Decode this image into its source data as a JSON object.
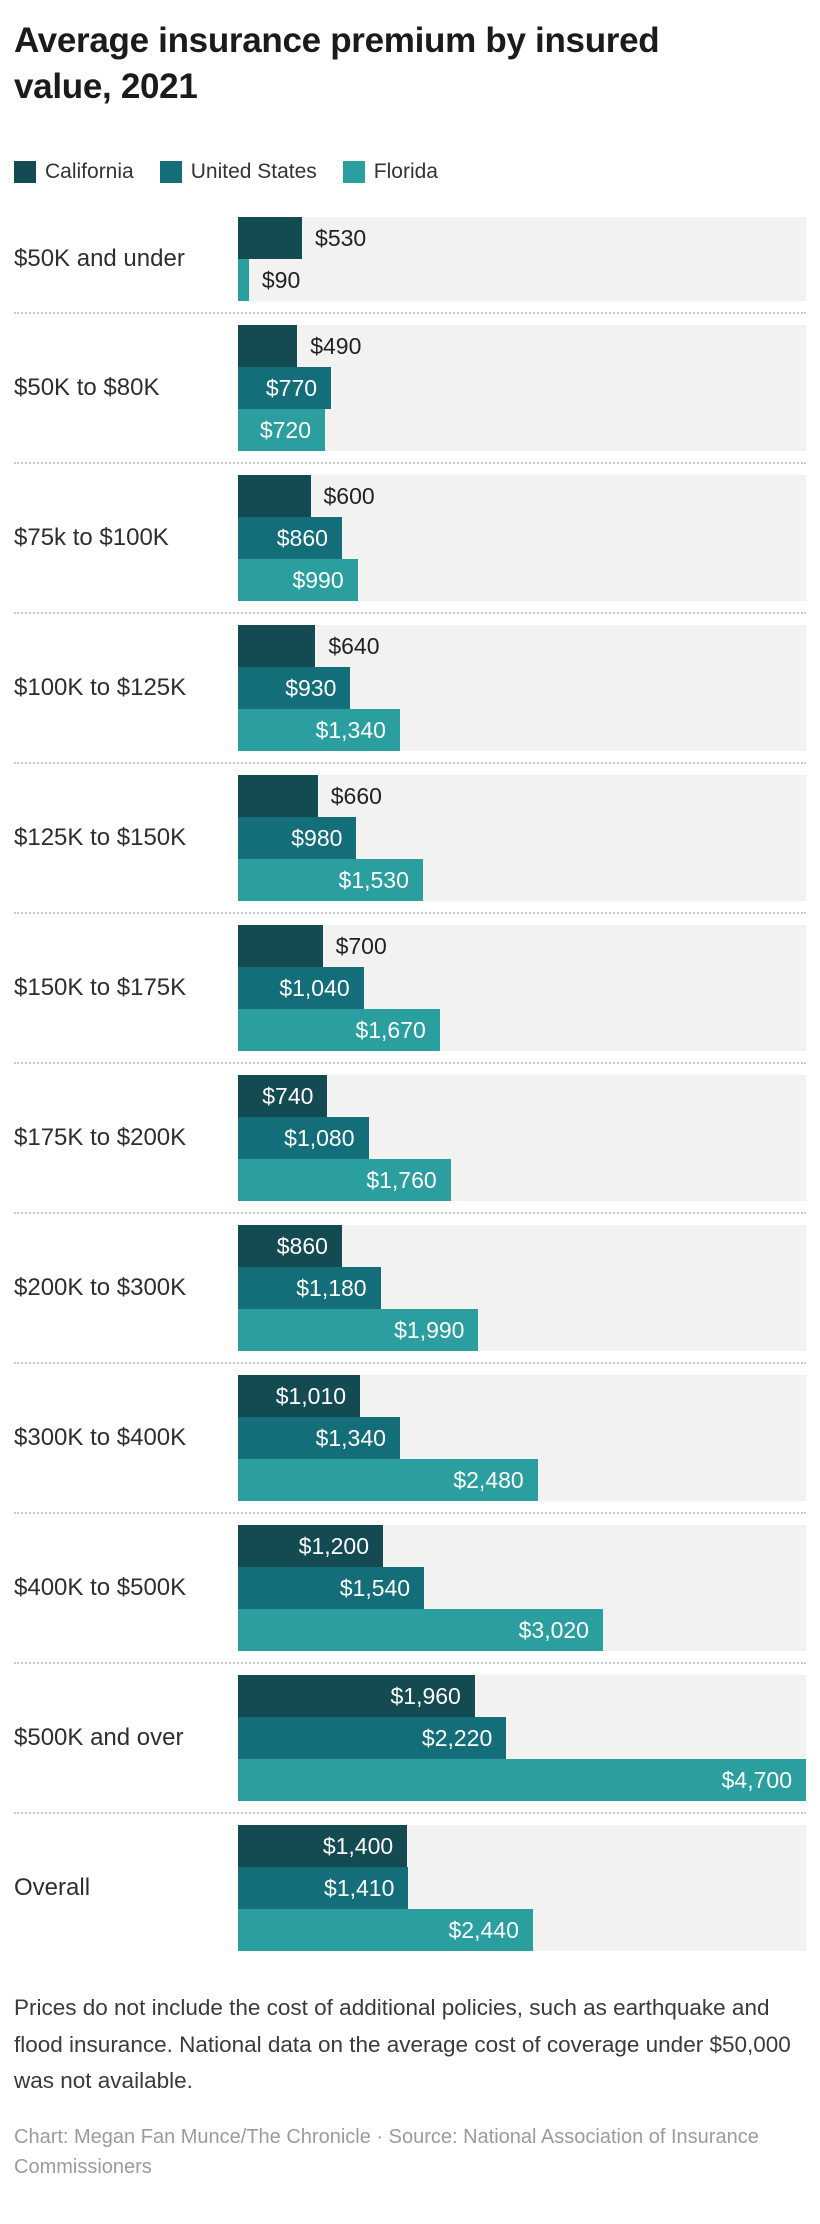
{
  "title": "Average insurance premium by insured value, 2021",
  "legend": [
    {
      "label": "California",
      "color": "#144a52"
    },
    {
      "label": "United States",
      "color": "#136e7a"
    },
    {
      "label": "Florida",
      "color": "#2b9ea0"
    }
  ],
  "chart_data": {
    "type": "bar",
    "orientation": "horizontal",
    "title": "Average insurance premium by insured value, 2021",
    "unit": "USD",
    "value_axis_range": [
      0,
      4700
    ],
    "grid": false,
    "legend_position": "top",
    "value_label_format": "$#,##0",
    "categories": [
      "$50K and under",
      "$50K to $80K",
      "$75k to $100K",
      "$100K to $125K",
      "$125K to $150K",
      "$150K to $175K",
      "$175K to $200K",
      "$200K to $300K",
      "$300K to $400K",
      "$400K to $500K",
      "$500K and over",
      "Overall"
    ],
    "series": [
      {
        "name": "California",
        "color": "#144a52",
        "values": [
          530,
          490,
          600,
          640,
          660,
          700,
          740,
          860,
          1010,
          1200,
          1960,
          1400
        ]
      },
      {
        "name": "United States",
        "color": "#136e7a",
        "values": [
          null,
          770,
          860,
          930,
          980,
          1040,
          1080,
          1180,
          1340,
          1540,
          2220,
          1410
        ]
      },
      {
        "name": "Florida",
        "color": "#2b9ea0",
        "values": [
          90,
          720,
          990,
          1340,
          1530,
          1670,
          1760,
          1990,
          2480,
          3020,
          4700,
          2440
        ]
      }
    ]
  },
  "notes": {
    "footnote": "Prices do not include the cost of additional policies, such as earthquake and flood insurance. National data on the average cost of coverage under $50,000 was not available."
  },
  "credit": {
    "line": "Chart: Megan Fan Munce/The Chronicle · Source: National Association of Insurance Commissioners"
  }
}
